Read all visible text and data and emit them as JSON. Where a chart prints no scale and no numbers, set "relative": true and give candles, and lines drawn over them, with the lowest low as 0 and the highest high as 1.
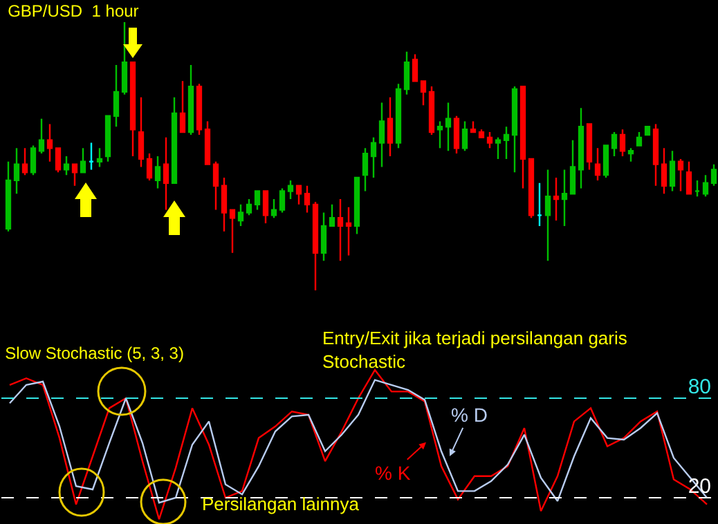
{
  "chart_data": [
    {
      "type": "candlestick",
      "title": "GBP/USD  1 hour",
      "relative": true,
      "tick_labels": false,
      "categories": [
        null,
        null,
        null,
        null,
        null,
        null,
        null,
        null,
        null,
        null,
        null,
        null,
        null,
        null,
        null,
        null,
        null,
        null,
        null,
        null,
        null,
        null,
        null,
        null,
        null,
        null,
        null,
        null,
        null,
        null,
        null,
        null,
        null,
        null,
        null,
        null,
        null,
        null,
        null,
        null,
        null,
        null,
        null,
        null,
        null,
        null,
        null,
        null,
        null,
        null,
        null,
        null,
        null,
        null,
        null,
        null,
        null,
        null,
        null,
        null,
        null,
        null,
        null,
        null,
        null,
        null,
        null,
        null,
        null,
        null,
        null,
        null,
        null,
        null,
        null,
        null,
        null,
        null,
        null,
        null,
        null,
        null,
        null,
        null,
        null,
        null
      ],
      "ohlc": [
        [
          0.23,
          0.48,
          0.22,
          0.41
        ],
        [
          0.41,
          0.53,
          0.36,
          0.47
        ],
        [
          0.47,
          0.53,
          0.43,
          0.44
        ],
        [
          0.44,
          0.54,
          0.43,
          0.53
        ],
        [
          0.52,
          0.64,
          0.51,
          0.56
        ],
        [
          0.56,
          0.62,
          0.48,
          0.53
        ],
        [
          0.53,
          0.53,
          0.44,
          0.45
        ],
        [
          0.45,
          0.5,
          0.43,
          0.47
        ],
        [
          0.47,
          0.47,
          0.39,
          0.44
        ],
        [
          0.44,
          0.53,
          0.44,
          0.48
        ],
        [
          0.48,
          0.55,
          0.45,
          0.48
        ],
        [
          0.48,
          0.53,
          0.46,
          0.49
        ],
        [
          0.5,
          0.65,
          0.48,
          0.65
        ],
        [
          0.65,
          0.84,
          0.61,
          0.74
        ],
        [
          0.74,
          1,
          0.73,
          0.85
        ],
        [
          0.85,
          0.85,
          0.5,
          0.6
        ],
        [
          0.59,
          0.72,
          0.46,
          0.49
        ],
        [
          0.49,
          0.51,
          0.41,
          0.42
        ],
        [
          0.41,
          0.5,
          0.38,
          0.46
        ],
        [
          0.47,
          0.57,
          0.3,
          0.4
        ],
        [
          0.4,
          0.72,
          0.4,
          0.66
        ],
        [
          0.66,
          0.78,
          0.59,
          0.59
        ],
        [
          0.59,
          0.84,
          0.58,
          0.76
        ],
        [
          0.76,
          0.77,
          0.58,
          0.6
        ],
        [
          0.6,
          0.63,
          0.47,
          0.47
        ],
        [
          0.47,
          0.48,
          0.3,
          0.39
        ],
        [
          0.39,
          0.42,
          0.22,
          0.29
        ],
        [
          0.3,
          0.3,
          0.14,
          0.27
        ],
        [
          0.26,
          0.32,
          0.24,
          0.29
        ],
        [
          0.29,
          0.34,
          0.28,
          0.32
        ],
        [
          0.32,
          0.37,
          0.3,
          0.37
        ],
        [
          0.37,
          0.37,
          0.25,
          0.28
        ],
        [
          0.28,
          0.34,
          0.27,
          0.3
        ],
        [
          0.3,
          0.38,
          0.29,
          0.37
        ],
        [
          0.37,
          0.41,
          0.34,
          0.39
        ],
        [
          0.39,
          0.39,
          0.32,
          0.36
        ],
        [
          0.36,
          0.39,
          0.29,
          0.32
        ],
        [
          0.32,
          0.33,
          0,
          0.14
        ],
        [
          0.14,
          0.29,
          0.11,
          0.24
        ],
        [
          0.24,
          0.32,
          0.24,
          0.27
        ],
        [
          0.27,
          0.34,
          0.11,
          0.24
        ],
        [
          0.25,
          0.31,
          0.13,
          0.24
        ],
        [
          0.24,
          0.42,
          0.21,
          0.42
        ],
        [
          0.43,
          0.53,
          0.37,
          0.51
        ],
        [
          0.5,
          0.57,
          0.42,
          0.55
        ],
        [
          0.55,
          0.7,
          0.46,
          0.63
        ],
        [
          0.64,
          0.72,
          0.5,
          0.55
        ],
        [
          0.55,
          0.77,
          0.53,
          0.75
        ],
        [
          0.75,
          0.89,
          0.73,
          0.85
        ],
        [
          0.86,
          0.88,
          0.78,
          0.78
        ],
        [
          0.78,
          0.78,
          0.69,
          0.74
        ],
        [
          0.74,
          0.76,
          0.58,
          0.59
        ],
        [
          0.6,
          0.63,
          0.53,
          0.61
        ],
        [
          0.61,
          0.7,
          0.52,
          0.64
        ],
        [
          0.64,
          0.65,
          0.51,
          0.53
        ],
        [
          0.53,
          0.63,
          0.52,
          0.6
        ],
        [
          0.6,
          0.63,
          0.59,
          0.59
        ],
        [
          0.59,
          0.6,
          0.57,
          0.57
        ],
        [
          0.57,
          0.59,
          0.53,
          0.55
        ],
        [
          0.55,
          0.57,
          0.49,
          0.56
        ],
        [
          0.56,
          0.61,
          0.49,
          0.58
        ],
        [
          0.58,
          0.76,
          0.44,
          0.75
        ],
        [
          0.76,
          0.76,
          0.38,
          0.49
        ],
        [
          0.49,
          0.49,
          0.27,
          0.28
        ],
        [
          0.28,
          0.4,
          0.24,
          0.28
        ],
        [
          0.28,
          0.45,
          0.11,
          0.35
        ],
        [
          0.35,
          0.42,
          0.26,
          0.34
        ],
        [
          0.34,
          0.45,
          0.24,
          0.36
        ],
        [
          0.36,
          0.56,
          0.36,
          0.46
        ],
        [
          0.45,
          0.68,
          0.38,
          0.61
        ],
        [
          0.62,
          0.62,
          0.45,
          0.48
        ],
        [
          0.47,
          0.53,
          0.41,
          0.43
        ],
        [
          0.43,
          0.54,
          0.42,
          0.54
        ],
        [
          0.53,
          0.59,
          0.5,
          0.58
        ],
        [
          0.58,
          0.6,
          0.5,
          0.52
        ],
        [
          0.51,
          0.53,
          0.48,
          0.52
        ],
        [
          0.54,
          0.59,
          0.54,
          0.57
        ],
        [
          0.58,
          0.61,
          0.58,
          0.61
        ],
        [
          0.6,
          0.62,
          0.39,
          0.47
        ],
        [
          0.47,
          0.53,
          0.36,
          0.39
        ],
        [
          0.39,
          0.52,
          0.37,
          0.48
        ],
        [
          0.48,
          0.49,
          0.37,
          0.45
        ],
        [
          0.44,
          0.48,
          0.36,
          0.36
        ],
        [
          0.37,
          0.41,
          0.35,
          0.37
        ],
        [
          0.36,
          0.43,
          0.35,
          0.4
        ],
        [
          0.4,
          0.47,
          0.39,
          0.45
        ]
      ],
      "colors": [
        "#00c000",
        "#00c000",
        "#ff0000",
        "#00c000",
        "#00c000",
        "#ff0000",
        "#ff0000",
        "#00c000",
        "#ff0000",
        "#00c000",
        "#00ffff",
        "#00c000",
        "#00c000",
        "#00c000",
        "#00c000",
        "#ff0000",
        "#ff0000",
        "#ff0000",
        "#00c000",
        "#ff0000",
        "#00c000",
        "#ff0000",
        "#00c000",
        "#ff0000",
        "#ff0000",
        "#ff0000",
        "#ff0000",
        "#ff0000",
        "#00c000",
        "#00c000",
        "#00c000",
        "#ff0000",
        "#00c000",
        "#00c000",
        "#00c000",
        "#ff0000",
        "#ff0000",
        "#ff0000",
        "#00c000",
        "#00c000",
        "#ff0000",
        "#ff0000",
        "#00c000",
        "#00c000",
        "#00c000",
        "#00c000",
        "#ff0000",
        "#00c000",
        "#00c000",
        "#ff0000",
        "#ff0000",
        "#ff0000",
        "#00c000",
        "#00c000",
        "#ff0000",
        "#00c000",
        "#ff0000",
        "#ff0000",
        "#ff0000",
        "#00c000",
        "#00c000",
        "#00c000",
        "#ff0000",
        "#ff0000",
        "#00ffff",
        "#00c000",
        "#ff0000",
        "#00c000",
        "#00c000",
        "#00c000",
        "#ff0000",
        "#ff0000",
        "#00c000",
        "#00c000",
        "#ff0000",
        "#00c000",
        "#00c000",
        "#00c000",
        "#ff0000",
        "#ff0000",
        "#00c000",
        "#ff0000",
        "#ff0000",
        "#00c000",
        "#00c000",
        "#00c000"
      ]
    },
    {
      "type": "line",
      "title": "Slow Stochastic (5, 3, 3)",
      "tick_labels": "y",
      "ylim": [
        5,
        132.5
      ],
      "yticks": [
        20,
        80
      ],
      "categories": [
        null,
        null,
        null,
        null,
        null,
        null,
        null,
        null,
        null,
        null,
        null,
        null,
        null,
        null,
        null,
        null,
        null,
        null,
        null,
        null,
        null,
        null,
        null,
        null,
        null,
        null,
        null,
        null,
        null,
        null,
        null,
        null,
        null,
        null,
        null,
        null,
        null,
        null,
        null,
        null,
        null,
        null,
        null
      ],
      "series": [
        {
          "name": "% K",
          "color": "#ff0000",
          "values": [
            88,
            92,
            88,
            56,
            16,
            45,
            74,
            80,
            42,
            7,
            38,
            74,
            52,
            20,
            24,
            56,
            63,
            72,
            70,
            42,
            60,
            80,
            97,
            84,
            84,
            78,
            39,
            19,
            33,
            33,
            39,
            62,
            12,
            33,
            66,
            74,
            51,
            56,
            66,
            72,
            31,
            25,
            16
          ]
        },
        {
          "name": "% D",
          "color": "#b8ccf0",
          "values": [
            77,
            88,
            90,
            63,
            27,
            25,
            53,
            80,
            53,
            17,
            20,
            52,
            66,
            28,
            22,
            39,
            60,
            69,
            70,
            48,
            58,
            70,
            91,
            88,
            85,
            79,
            48,
            24,
            24,
            30,
            40,
            58,
            32,
            18,
            45,
            68,
            56,
            55,
            62,
            71,
            44,
            32,
            20
          ]
        }
      ],
      "ref_lines": [
        {
          "axis": "y",
          "value": 80,
          "color": "#33e6e6",
          "line_style": "dashed"
        },
        {
          "axis": "y",
          "value": 20,
          "color": "#ffffff",
          "line_style": "dashed"
        }
      ],
      "annotations": [
        "Entry/Exit jika terjadi persilangan garis Stochastic",
        "Persilangan lainnya"
      ]
    }
  ]
}
